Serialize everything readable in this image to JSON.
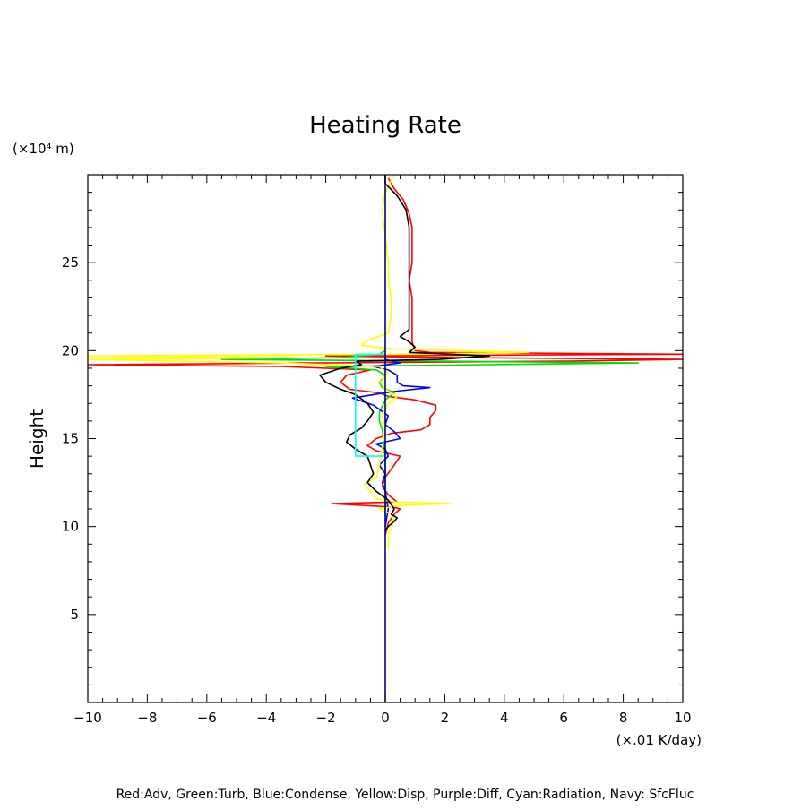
{
  "chart_data": {
    "type": "line",
    "title": "Heating Rate",
    "ylabel": "Height",
    "y_unit": "(×10⁴ m)",
    "x_unit": "(×.01 K/day)",
    "caption": "Red:Adv, Green:Turb, Blue:Condense, Yellow:Disp, Purple:Diff, Cyan:Radiation, Navy: SfcFluc",
    "xlim": [
      -10,
      10
    ],
    "ylim": [
      0,
      30
    ],
    "x_ticks": [
      -10,
      -8,
      -6,
      -4,
      -2,
      0,
      2,
      4,
      6,
      8,
      10
    ],
    "y_ticks": [
      5,
      10,
      15,
      20,
      25
    ],
    "x_tick_labels": [
      "−10",
      "−8",
      "−6",
      "−4",
      "−2",
      "0",
      "2",
      "4",
      "6",
      "8",
      "10"
    ],
    "y_tick_labels": [
      "5",
      "10",
      "15",
      "20",
      "25"
    ],
    "grid": false,
    "series": [
      {
        "color": "#ff0000",
        "points": [
          [
            0.0,
            9.5
          ],
          [
            0.1,
            10.2
          ],
          [
            0.3,
            10.7
          ],
          [
            0.5,
            11.0
          ],
          [
            0.3,
            11.1
          ],
          [
            -1.8,
            11.3
          ],
          [
            0.4,
            11.4
          ],
          [
            0.1,
            11.8
          ],
          [
            -0.1,
            12.3
          ],
          [
            0.0,
            12.8
          ],
          [
            0.3,
            13.5
          ],
          [
            0.5,
            14.0
          ],
          [
            -0.3,
            14.3
          ],
          [
            -0.6,
            14.6
          ],
          [
            -0.3,
            15.0
          ],
          [
            0.2,
            15.3
          ],
          [
            1.2,
            15.5
          ],
          [
            1.5,
            15.8
          ],
          [
            1.5,
            16.2
          ],
          [
            1.7,
            16.6
          ],
          [
            1.7,
            16.9
          ],
          [
            1.0,
            17.2
          ],
          [
            0.1,
            17.4
          ],
          [
            -0.2,
            17.6
          ],
          [
            -1.2,
            17.8
          ],
          [
            -1.5,
            18.2
          ],
          [
            -1.3,
            18.6
          ],
          [
            -0.5,
            18.9
          ],
          [
            -3.5,
            19.1
          ],
          [
            -10.0,
            19.2
          ],
          [
            -2.5,
            19.3
          ],
          [
            6.0,
            19.4
          ],
          [
            10.0,
            19.5
          ],
          [
            3.0,
            19.6
          ],
          [
            -2.0,
            19.7
          ],
          [
            10.0,
            19.8
          ],
          [
            1.5,
            19.9
          ],
          [
            1.0,
            20.0
          ],
          [
            0.9,
            20.5
          ],
          [
            0.9,
            21.5
          ],
          [
            0.9,
            23.0
          ],
          [
            0.8,
            24.0
          ],
          [
            0.9,
            25.0
          ],
          [
            0.9,
            26.0
          ],
          [
            0.9,
            27.0
          ],
          [
            0.8,
            27.8
          ],
          [
            0.6,
            28.6
          ],
          [
            0.3,
            29.2
          ],
          [
            0.1,
            29.8
          ]
        ]
      },
      {
        "color": "#00dd00",
        "points": [
          [
            0.0,
            10.5
          ],
          [
            0.0,
            12.0
          ],
          [
            0.0,
            14.0
          ],
          [
            -0.1,
            15.5
          ],
          [
            -0.2,
            16.0
          ],
          [
            -0.2,
            16.5
          ],
          [
            0.0,
            17.2
          ],
          [
            0.3,
            17.6
          ],
          [
            -0.1,
            17.9
          ],
          [
            -0.2,
            18.2
          ],
          [
            0.0,
            18.6
          ],
          [
            -0.3,
            18.9
          ],
          [
            -2.0,
            19.1
          ],
          [
            8.5,
            19.3
          ],
          [
            2.0,
            19.4
          ],
          [
            -5.5,
            19.5
          ],
          [
            -1.5,
            19.6
          ],
          [
            -0.2,
            19.8
          ],
          [
            0.0,
            20.0
          ]
        ]
      },
      {
        "color": "#0000ff",
        "points": [
          [
            0.0,
            10.0
          ],
          [
            0.1,
            11.0
          ],
          [
            0.0,
            12.0
          ],
          [
            -0.1,
            12.5
          ],
          [
            0.0,
            13.0
          ],
          [
            -0.2,
            13.5
          ],
          [
            0.1,
            14.0
          ],
          [
            0.0,
            14.4
          ],
          [
            -0.3,
            14.7
          ],
          [
            0.5,
            15.0
          ],
          [
            0.3,
            15.4
          ],
          [
            0.0,
            15.8
          ],
          [
            0.1,
            16.3
          ],
          [
            -0.4,
            16.9
          ],
          [
            -1.1,
            17.3
          ],
          [
            -0.4,
            17.5
          ],
          [
            0.4,
            17.7
          ],
          [
            1.5,
            17.9
          ],
          [
            0.6,
            18.0
          ],
          [
            0.4,
            18.2
          ],
          [
            0.4,
            18.6
          ],
          [
            0.1,
            18.9
          ],
          [
            -0.4,
            19.1
          ],
          [
            0.5,
            19.3
          ],
          [
            0.0,
            19.5
          ],
          [
            0.0,
            19.8
          ]
        ]
      },
      {
        "color": "#ffff00",
        "points": [
          [
            0.1,
            8.7
          ],
          [
            0.1,
            9.5
          ],
          [
            0.3,
            10.3
          ],
          [
            0.2,
            10.7
          ],
          [
            -0.2,
            11.0
          ],
          [
            0.5,
            11.2
          ],
          [
            2.2,
            11.3
          ],
          [
            0.3,
            11.4
          ],
          [
            -0.3,
            11.6
          ],
          [
            -0.5,
            12.0
          ],
          [
            -0.7,
            12.4
          ],
          [
            -0.3,
            12.8
          ],
          [
            -0.2,
            13.5
          ],
          [
            -0.1,
            14.5
          ],
          [
            0.0,
            15.5
          ],
          [
            -0.1,
            16.3
          ],
          [
            0.1,
            17.0
          ],
          [
            0.4,
            17.4
          ],
          [
            0.0,
            17.8
          ],
          [
            -0.2,
            18.3
          ],
          [
            0.1,
            18.7
          ],
          [
            -0.2,
            19.1
          ],
          [
            -3.5,
            19.3
          ],
          [
            -10.0,
            19.5
          ],
          [
            -3.0,
            19.6
          ],
          [
            -10.0,
            19.7
          ],
          [
            1.0,
            19.8
          ],
          [
            4.8,
            19.9
          ],
          [
            0.3,
            20.1
          ],
          [
            -0.8,
            20.3
          ],
          [
            -0.6,
            20.6
          ],
          [
            0.1,
            21.0
          ],
          [
            0.2,
            22.0
          ],
          [
            0.2,
            23.0
          ],
          [
            0.1,
            24.0
          ],
          [
            0.1,
            25.0
          ],
          [
            0.0,
            26.5
          ],
          [
            -0.1,
            28.0
          ],
          [
            0.0,
            29.0
          ],
          [
            0.3,
            30.0
          ]
        ]
      },
      {
        "color": "#000000",
        "points": [
          [
            0.0,
            9.8
          ],
          [
            0.1,
            10.0
          ],
          [
            0.3,
            10.3
          ],
          [
            0.4,
            10.5
          ],
          [
            0.2,
            10.7
          ],
          [
            0.3,
            11.0
          ],
          [
            0.1,
            11.5
          ],
          [
            -0.3,
            12.0
          ],
          [
            -0.6,
            12.5
          ],
          [
            -0.4,
            13.0
          ],
          [
            -0.5,
            13.5
          ],
          [
            -0.6,
            14.0
          ],
          [
            -1.0,
            14.4
          ],
          [
            -1.3,
            14.8
          ],
          [
            -1.2,
            15.2
          ],
          [
            -0.8,
            15.6
          ],
          [
            -0.6,
            16.0
          ],
          [
            -0.4,
            16.5
          ],
          [
            -0.6,
            17.0
          ],
          [
            -1.0,
            17.5
          ],
          [
            -1.5,
            17.8
          ],
          [
            -2.0,
            18.2
          ],
          [
            -2.2,
            18.6
          ],
          [
            -1.5,
            19.0
          ],
          [
            -0.8,
            19.2
          ],
          [
            -1.0,
            19.4
          ],
          [
            1.8,
            19.5
          ],
          [
            3.5,
            19.7
          ],
          [
            0.8,
            19.9
          ],
          [
            1.0,
            20.2
          ],
          [
            0.8,
            20.5
          ],
          [
            0.5,
            20.8
          ],
          [
            0.8,
            21.2
          ],
          [
            0.8,
            22.0
          ],
          [
            0.8,
            23.0
          ],
          [
            0.8,
            24.0
          ],
          [
            0.8,
            25.5
          ],
          [
            0.8,
            27.0
          ],
          [
            0.7,
            28.0
          ],
          [
            0.4,
            28.8
          ],
          [
            0.0,
            29.5
          ],
          [
            0.0,
            30.0
          ]
        ]
      },
      {
        "color": "#00ffff",
        "points": [
          [
            0.0,
            14.0
          ],
          [
            -1.0,
            14.0
          ],
          [
            -1.0,
            19.8
          ],
          [
            0.0,
            19.8
          ]
        ]
      },
      {
        "color": "#000080",
        "points": [
          [
            0.0,
            0.0
          ],
          [
            0.0,
            30.0
          ]
        ]
      },
      {
        "color": "#800080",
        "points": [
          [
            0.0,
            30.0
          ],
          [
            0.0,
            30.0
          ]
        ]
      }
    ]
  }
}
